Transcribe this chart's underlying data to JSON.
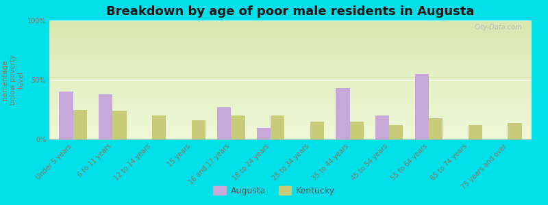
{
  "title": "Breakdown by age of poor male residents in Augusta",
  "ylabel": "percentage\nbelow poverty\nlevel",
  "categories": [
    "Under 5 years",
    "6 to 11 years",
    "12 to 14 years",
    "15 years",
    "16 and 17 years",
    "18 to 24 years",
    "25 to 34 years",
    "35 to 44 years",
    "45 to 54 years",
    "55 to 64 years",
    "65 to 74 years",
    "75 years and over"
  ],
  "augusta_values": [
    40,
    38,
    0,
    0,
    27,
    10,
    0,
    43,
    20,
    55,
    0,
    0
  ],
  "kentucky_values": [
    25,
    24,
    20,
    16,
    20,
    20,
    15,
    15,
    12,
    18,
    12,
    14
  ],
  "augusta_color": "#c8a8d8",
  "kentucky_color": "#c8cc7a",
  "bg_top_color": "#d8e8b0",
  "bg_bottom_color": "#f0f8d8",
  "outer_bg": "#00e0e8",
  "ylim": [
    0,
    100
  ],
  "yticks": [
    0,
    50,
    100
  ],
  "ytick_labels": [
    "0%",
    "50%",
    "100%"
  ],
  "watermark": "City-Data.com",
  "legend_augusta": "Augusta",
  "legend_kentucky": "Kentucky",
  "bar_width": 0.35,
  "title_fontsize": 13,
  "axis_label_fontsize": 7.5,
  "tick_fontsize": 7,
  "legend_fontsize": 9
}
